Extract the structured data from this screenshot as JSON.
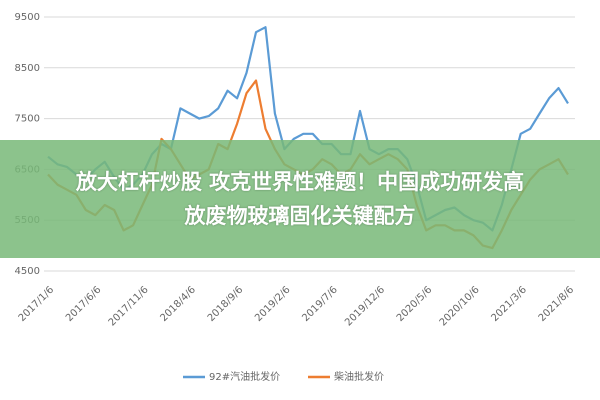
{
  "chart_data": {
    "type": "line",
    "categories": [
      "2017/1/6",
      null,
      null,
      null,
      null,
      "2017/6/6",
      null,
      null,
      null,
      null,
      "2017/11/6",
      null,
      null,
      null,
      null,
      "2018/4/6",
      null,
      null,
      null,
      null,
      "2018/9/6",
      null,
      null,
      null,
      null,
      "2019/2/6",
      null,
      null,
      null,
      null,
      "2019/7/6",
      null,
      null,
      null,
      null,
      "2019/12/6",
      null,
      null,
      null,
      null,
      "2020/5/6",
      null,
      null,
      null,
      null,
      "2020/10/6",
      null,
      null,
      null,
      null,
      "2021/3/6",
      null,
      null,
      null,
      null,
      "2021/8/6"
    ],
    "series": [
      {
        "name": "92#汽油批发价",
        "color": "#5b9bd5",
        "values": [
          6750,
          6600,
          6550,
          6400,
          6300,
          6500,
          6650,
          6350,
          6100,
          6200,
          6400,
          6800,
          7000,
          6900,
          7700,
          7600,
          7500,
          7550,
          7700,
          8050,
          7900,
          8400,
          9200,
          9300,
          7600,
          6900,
          7100,
          7200,
          7200,
          7000,
          7000,
          6800,
          6800,
          7650,
          6900,
          6800,
          6900,
          6900,
          6700,
          6200,
          5500,
          5600,
          5700,
          5750,
          5600,
          5500,
          5450,
          5300,
          5800,
          6500,
          7200,
          7300,
          7600,
          7900,
          8100,
          7800
        ]
      },
      {
        "name": "柴油批发价",
        "color": "#ed7d31",
        "values": [
          6400,
          6200,
          6100,
          6000,
          5700,
          5600,
          5800,
          5700,
          5300,
          5400,
          5800,
          6200,
          7100,
          6900,
          6600,
          6300,
          6400,
          6500,
          7000,
          6900,
          7400,
          8000,
          8250,
          7300,
          6900,
          6600,
          6500,
          6400,
          6500,
          6700,
          6600,
          6400,
          6500,
          6800,
          6600,
          6700,
          6800,
          6700,
          6500,
          5800,
          5300,
          5400,
          5400,
          5300,
          5300,
          5200,
          5000,
          4950,
          5300,
          5700,
          6000,
          6300,
          6500,
          6600,
          6700,
          6400
        ]
      }
    ],
    "ylim": [
      4500,
      9500
    ],
    "yticks": [
      4500,
      5500,
      6500,
      7500,
      8500,
      9500
    ],
    "grid": true
  },
  "banner_lines": [
    "放大杠杆炒股 攻克世界性难题！中国成功研发高",
    "放废物玻璃固化关键配方"
  ]
}
